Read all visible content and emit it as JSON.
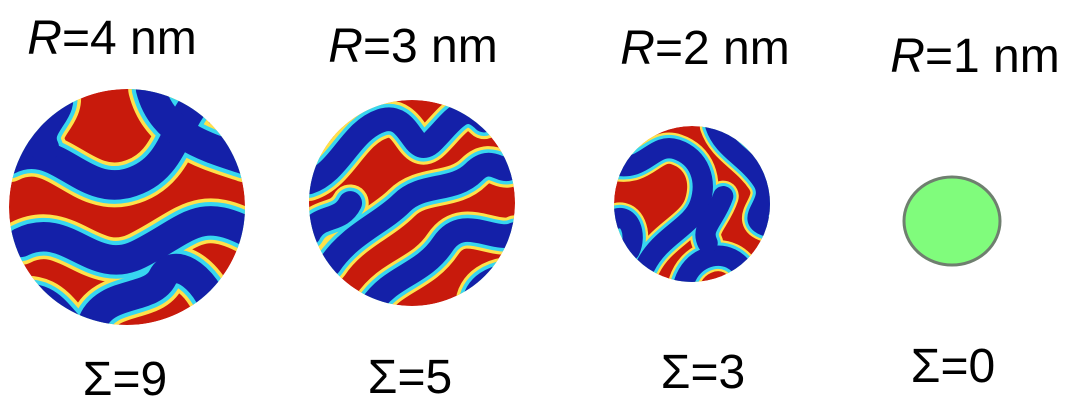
{
  "panels": [
    {
      "symbol": "R",
      "radius": "=4 nm",
      "sigma": "Σ=9"
    },
    {
      "symbol": "R",
      "radius": "=3 nm",
      "sigma": "Σ=5"
    },
    {
      "symbol": "R",
      "radius": "=2 nm",
      "sigma": "Σ=3"
    },
    {
      "symbol": "R",
      "radius": "=1 nm",
      "sigma": "Σ=0"
    }
  ]
}
